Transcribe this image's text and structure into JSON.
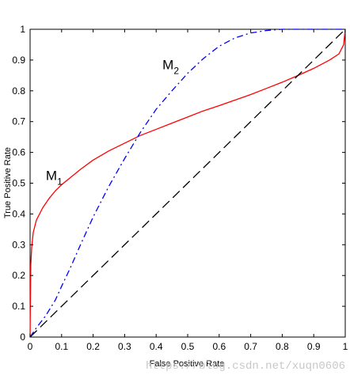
{
  "chart_data": {
    "type": "line",
    "xlabel": "False Positive Rate",
    "ylabel": "True Positive Rate",
    "xlim": [
      0,
      1
    ],
    "ylim": [
      0,
      1
    ],
    "xticks": [
      "0",
      "0.1",
      "0.2",
      "0.3",
      "0.4",
      "0.5",
      "0.6",
      "0.7",
      "0.8",
      "0.9",
      "1"
    ],
    "yticks": [
      "0",
      "0.1",
      "0.2",
      "0.3",
      "0.4",
      "0.5",
      "0.6",
      "0.7",
      "0.8",
      "0.9",
      "1"
    ],
    "grid": false,
    "legend": "none",
    "series": [
      {
        "label_main": "M",
        "label_sub": "1",
        "color": "#ff0000",
        "style": "solid",
        "x": [
          0,
          0.002,
          0.005,
          0.01,
          0.02,
          0.04,
          0.06,
          0.08,
          0.1,
          0.13,
          0.16,
          0.2,
          0.25,
          0.3,
          0.35,
          0.4,
          0.45,
          0.5,
          0.55,
          0.6,
          0.65,
          0.7,
          0.75,
          0.8,
          0.85,
          0.9,
          0.95,
          0.98,
          0.995,
          1.0
        ],
        "y": [
          0,
          0.23,
          0.29,
          0.34,
          0.38,
          0.42,
          0.45,
          0.475,
          0.495,
          0.52,
          0.545,
          0.575,
          0.605,
          0.63,
          0.655,
          0.675,
          0.695,
          0.715,
          0.735,
          0.752,
          0.77,
          0.788,
          0.808,
          0.828,
          0.85,
          0.873,
          0.9,
          0.92,
          0.95,
          1.0
        ]
      },
      {
        "label_main": "M",
        "label_sub": "2",
        "color": "#0000ff",
        "style": "dashdot",
        "x": [
          0,
          0.02,
          0.05,
          0.08,
          0.1,
          0.13,
          0.16,
          0.2,
          0.25,
          0.3,
          0.35,
          0.4,
          0.45,
          0.5,
          0.55,
          0.6,
          0.65,
          0.7,
          0.75,
          0.8,
          0.85,
          0.9,
          0.95,
          1.0
        ],
        "y": [
          0,
          0.03,
          0.07,
          0.12,
          0.165,
          0.23,
          0.3,
          0.39,
          0.49,
          0.58,
          0.665,
          0.74,
          0.8,
          0.857,
          0.905,
          0.945,
          0.972,
          0.988,
          0.996,
          1.0,
          1.0,
          1.0,
          1.0,
          1.0
        ]
      },
      {
        "color": "#000000",
        "style": "dashed",
        "x": [
          0,
          1
        ],
        "y": [
          0,
          1
        ]
      }
    ]
  },
  "watermark": "https://blog.csdn.net/xuqn0606"
}
